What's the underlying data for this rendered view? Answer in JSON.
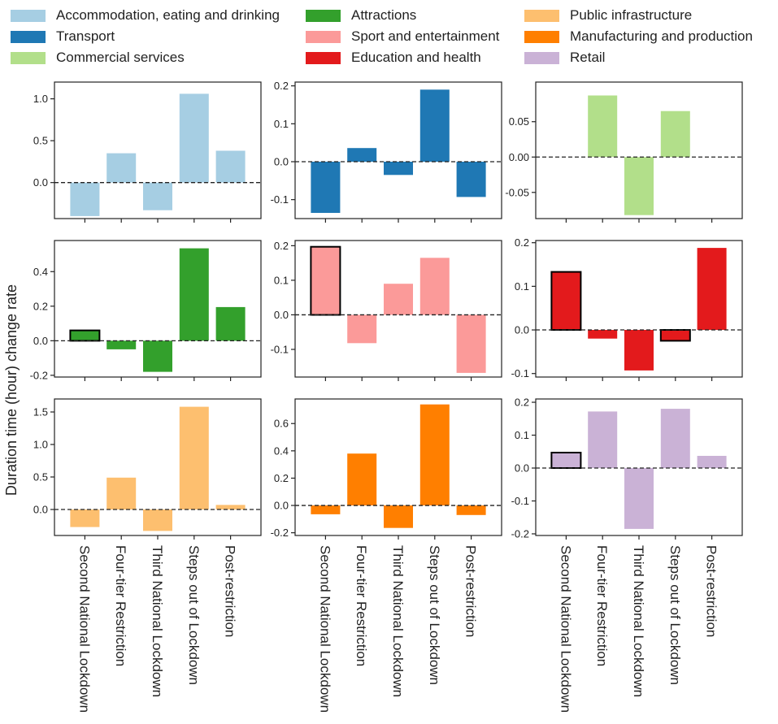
{
  "ylabel": "Duration time (hour) change rate",
  "legend": [
    {
      "label": "Accommodation, eating and drinking",
      "color": "#a6cee3"
    },
    {
      "label": "Attractions",
      "color": "#33a02c"
    },
    {
      "label": "Public infrastructure",
      "color": "#fdbf6f"
    },
    {
      "label": "Transport",
      "color": "#1f78b4"
    },
    {
      "label": "Sport and entertainment",
      "color": "#fb9a99"
    },
    {
      "label": "Manufacturing and production",
      "color": "#ff7f00"
    },
    {
      "label": "Commercial services",
      "color": "#b2df8a"
    },
    {
      "label": "Education and health",
      "color": "#e31a1c"
    },
    {
      "label": "Retail",
      "color": "#cab2d6"
    }
  ],
  "chart_data": {
    "type": "bar",
    "categories": [
      "Second National Lockdown",
      "Four-tier Restriction",
      "Third National Lockdown",
      "Steps out of Lockdown",
      "Post-restriction"
    ],
    "ylabel": "Duration time (hour) change rate",
    "reference_line": 0,
    "panels": [
      {
        "name": "Accommodation, eating and drinking",
        "color": "#a6cee3",
        "values": [
          -0.4,
          0.35,
          -0.33,
          1.06,
          0.38
        ],
        "highlighted": [
          false,
          false,
          false,
          false,
          false
        ],
        "ylim": [
          -0.43,
          1.2
        ],
        "yticks": [
          0.0,
          0.5,
          1.0
        ],
        "ytick_labels": [
          "0.0",
          "0.5",
          "1.0"
        ]
      },
      {
        "name": "Transport",
        "color": "#1f78b4",
        "values": [
          -0.135,
          0.036,
          -0.035,
          0.19,
          -0.093
        ],
        "highlighted": [
          false,
          false,
          false,
          false,
          false
        ],
        "ylim": [
          -0.15,
          0.21
        ],
        "yticks": [
          -0.1,
          0.0,
          0.1,
          0.2
        ],
        "ytick_labels": [
          "-0.1",
          "0.0",
          "0.1",
          "0.2"
        ]
      },
      {
        "name": "Commercial services",
        "color": "#b2df8a",
        "values": [
          0.0,
          0.087,
          -0.082,
          0.065,
          0.0
        ],
        "highlighted": [
          false,
          false,
          false,
          false,
          false
        ],
        "ylim": [
          -0.087,
          0.106
        ],
        "yticks": [
          -0.05,
          0.0,
          0.05
        ],
        "ytick_labels": [
          "-0.05",
          "0.00",
          "0.05"
        ]
      },
      {
        "name": "Attractions",
        "color": "#33a02c",
        "values": [
          0.06,
          -0.05,
          -0.18,
          0.535,
          0.195
        ],
        "highlighted": [
          true,
          false,
          false,
          false,
          false
        ],
        "ylim": [
          -0.21,
          0.58
        ],
        "yticks": [
          -0.2,
          0.0,
          0.2,
          0.4
        ],
        "ytick_labels": [
          "-0.2",
          "0.0",
          "0.2",
          "0.4"
        ]
      },
      {
        "name": "Sport and entertainment",
        "color": "#fb9a99",
        "values": [
          0.197,
          -0.082,
          0.09,
          0.165,
          -0.168
        ],
        "highlighted": [
          true,
          false,
          false,
          false,
          false
        ],
        "ylim": [
          -0.18,
          0.215
        ],
        "yticks": [
          -0.1,
          0.0,
          0.1,
          0.2
        ],
        "ytick_labels": [
          "-0.1",
          "0.0",
          "0.1",
          "0.2"
        ]
      },
      {
        "name": "Education and health",
        "color": "#e31a1c",
        "values": [
          0.133,
          -0.02,
          -0.093,
          -0.025,
          0.188
        ],
        "highlighted": [
          true,
          false,
          false,
          true,
          false
        ],
        "ylim": [
          -0.108,
          0.205
        ],
        "yticks": [
          -0.1,
          0.0,
          0.1,
          0.2
        ],
        "ytick_labels": [
          "-0.1",
          "0.0",
          "0.1",
          "0.2"
        ]
      },
      {
        "name": "Public infrastructure",
        "color": "#fdbf6f",
        "values": [
          -0.27,
          0.49,
          -0.33,
          1.58,
          0.07
        ],
        "highlighted": [
          false,
          false,
          false,
          false,
          false
        ],
        "ylim": [
          -0.4,
          1.7
        ],
        "yticks": [
          0.0,
          0.5,
          1.0,
          1.5
        ],
        "ytick_labels": [
          "0.0",
          "0.5",
          "1.0",
          "1.5"
        ]
      },
      {
        "name": "Manufacturing and production",
        "color": "#ff7f00",
        "values": [
          -0.065,
          0.38,
          -0.165,
          0.74,
          -0.07
        ],
        "highlighted": [
          false,
          false,
          false,
          false,
          false
        ],
        "ylim": [
          -0.22,
          0.78
        ],
        "yticks": [
          -0.2,
          0.0,
          0.2,
          0.4,
          0.6
        ],
        "ytick_labels": [
          "-0.2",
          "0.0",
          "0.2",
          "0.4",
          "0.6"
        ]
      },
      {
        "name": "Retail",
        "color": "#cab2d6",
        "values": [
          0.047,
          0.172,
          -0.185,
          0.18,
          0.037
        ],
        "highlighted": [
          true,
          false,
          false,
          false,
          false
        ],
        "ylim": [
          -0.205,
          0.21
        ],
        "yticks": [
          -0.2,
          -0.1,
          0.0,
          0.1,
          0.2
        ],
        "ytick_labels": [
          "-0.2",
          "-0.1",
          "0.0",
          "0.1",
          "0.2"
        ]
      }
    ]
  }
}
